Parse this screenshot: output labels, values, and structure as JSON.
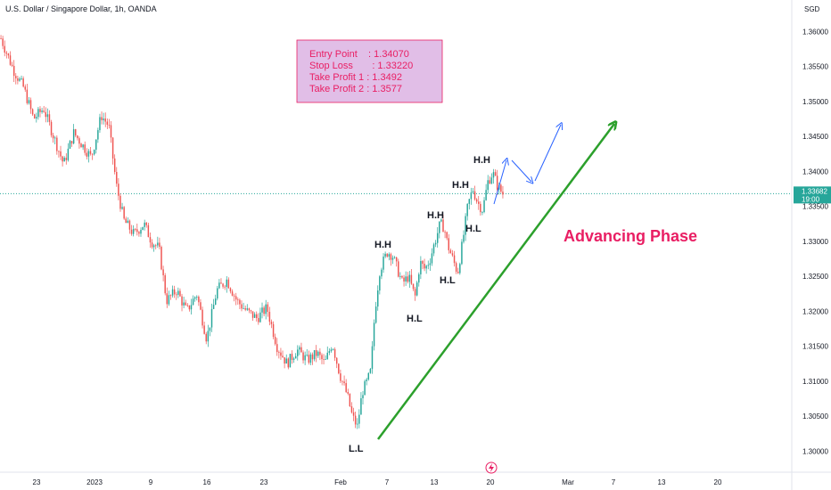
{
  "header": {
    "title": "U.S. Dollar / Singapore Dollar, 1h, OANDA"
  },
  "axis": {
    "currency_label": "SGD"
  },
  "current_price": {
    "value": "1.33682",
    "time": "19:00"
  },
  "trade_box": {
    "lines": [
      "Entry Point    : 1.34070",
      "Stop Loss       : 1.33220",
      "Take Profit 1 : 1.3492",
      "Take Profit 2 : 1.3577"
    ]
  },
  "phase_label": "Advancing Phase",
  "chart_data": {
    "type": "candlestick",
    "title": "U.S. Dollar / Singapore Dollar, 1h, OANDA",
    "ylabel": "SGD",
    "ylim": [
      1.297,
      1.3645
    ],
    "yticks": [
      "1.36000",
      "1.35500",
      "1.35000",
      "1.34500",
      "1.34000",
      "1.33500",
      "1.33000",
      "1.32500",
      "1.32000",
      "1.31500",
      "1.31000",
      "1.30500",
      "1.30000"
    ],
    "xticks": [
      "23",
      "2023",
      "9",
      "16",
      "23",
      "Feb",
      "7",
      "13",
      "20",
      "Mar",
      "7",
      "13",
      "20"
    ],
    "current_price": 1.33682,
    "annotations": [
      {
        "text": "H.H",
        "value": 1.3304
      },
      {
        "text": "H.L",
        "value": 1.3219
      },
      {
        "text": "H.H",
        "value": 1.335
      },
      {
        "text": "H.L",
        "value": 1.3259
      },
      {
        "text": "H.H",
        "value": 1.3386
      },
      {
        "text": "H.L",
        "value": 1.3331
      },
      {
        "text": "H.H",
        "value": 1.3416
      },
      {
        "text": "L.L",
        "value": 1.302
      }
    ],
    "trade_levels": {
      "entry": 1.3407,
      "stop_loss": 1.3322,
      "take_profit_1": 1.3492,
      "take_profit_2": 1.3577
    },
    "price_path": [
      [
        0,
        1.359
      ],
      [
        0.025,
        1.3545
      ],
      [
        0.045,
        1.352
      ],
      [
        0.065,
        1.3475
      ],
      [
        0.085,
        1.349
      ],
      [
        0.105,
        1.345
      ],
      [
        0.125,
        1.341
      ],
      [
        0.145,
        1.3455
      ],
      [
        0.165,
        1.3435
      ],
      [
        0.18,
        1.342
      ],
      [
        0.2,
        1.348
      ],
      [
        0.215,
        1.3465
      ],
      [
        0.23,
        1.338
      ],
      [
        0.245,
        1.333
      ],
      [
        0.265,
        1.331
      ],
      [
        0.285,
        1.3325
      ],
      [
        0.3,
        1.33
      ],
      [
        0.315,
        1.329
      ],
      [
        0.33,
        1.3215
      ],
      [
        0.35,
        1.323
      ],
      [
        0.37,
        1.32
      ],
      [
        0.39,
        1.3225
      ],
      [
        0.41,
        1.316
      ],
      [
        0.43,
        1.323
      ],
      [
        0.45,
        1.3245
      ],
      [
        0.47,
        1.3215
      ],
      [
        0.49,
        1.32
      ],
      [
        0.51,
        1.319
      ],
      [
        0.53,
        1.3205
      ],
      [
        0.55,
        1.315
      ],
      [
        0.57,
        1.3125
      ],
      [
        0.59,
        1.3145
      ],
      [
        0.61,
        1.313
      ],
      [
        0.63,
        1.314
      ],
      [
        0.645,
        1.3125
      ],
      [
        0.66,
        1.3155
      ],
      [
        0.675,
        1.311
      ],
      [
        0.69,
        1.308
      ],
      [
        0.7,
        1.305
      ],
      [
        0.71,
        1.3035
      ],
      [
        0.72,
        1.3085
      ],
      [
        0.73,
        1.31
      ],
      [
        0.737,
        1.3115
      ],
      [
        0.745,
        1.32
      ],
      [
        0.755,
        1.326
      ],
      [
        0.77,
        1.3285
      ],
      [
        0.78,
        1.328
      ],
      [
        0.79,
        1.326
      ],
      [
        0.8,
        1.324
      ],
      [
        0.812,
        1.325
      ],
      [
        0.825,
        1.322
      ],
      [
        0.835,
        1.327
      ],
      [
        0.845,
        1.326
      ],
      [
        0.855,
        1.3275
      ],
      [
        0.865,
        1.33
      ],
      [
        0.875,
        1.3325
      ],
      [
        0.883,
        1.332
      ],
      [
        0.89,
        1.3295
      ],
      [
        0.9,
        1.3275
      ],
      [
        0.91,
        1.3255
      ],
      [
        0.92,
        1.33
      ],
      [
        0.93,
        1.335
      ],
      [
        0.94,
        1.3375
      ],
      [
        0.95,
        1.3355
      ],
      [
        0.96,
        1.3345
      ],
      [
        0.97,
        1.3385
      ],
      [
        0.98,
        1.3398
      ],
      [
        0.99,
        1.3378
      ],
      [
        1.0,
        1.3368
      ]
    ]
  }
}
